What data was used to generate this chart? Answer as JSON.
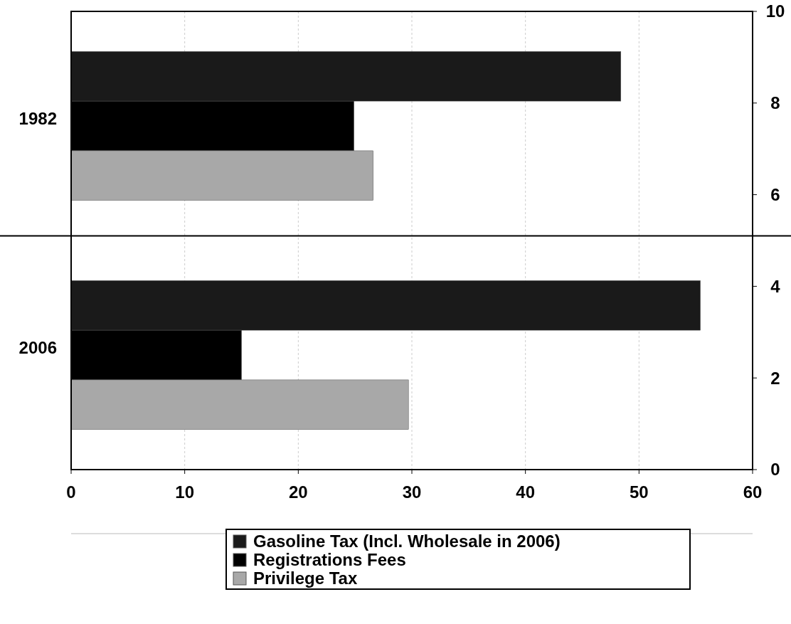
{
  "chart_data": {
    "type": "bar",
    "orientation": "horizontal",
    "categories": [
      "1982",
      "2006"
    ],
    "series": [
      {
        "name": "Gasoline Tax (Incl. Wholesale in 2006)",
        "color": "#1a1a1a",
        "values": [
          48.4,
          55.4
        ]
      },
      {
        "name": "Registrations Fees",
        "color": "#000000",
        "values": [
          24.9,
          15.0
        ]
      },
      {
        "name": "Privilege Tax",
        "color": "#a8a8a8",
        "values": [
          26.6,
          29.7
        ]
      }
    ],
    "xlim": [
      0,
      60
    ],
    "xticks": [
      0,
      10,
      20,
      30,
      40,
      50,
      60
    ],
    "y2lim": [
      0,
      10
    ],
    "y2ticks": [
      0,
      2,
      4,
      6,
      8,
      10
    ],
    "ref_lines": [
      {
        "axis": "y2",
        "value": 5.1,
        "color": "#000000"
      }
    ],
    "grid": "x",
    "legend": "bottom"
  }
}
